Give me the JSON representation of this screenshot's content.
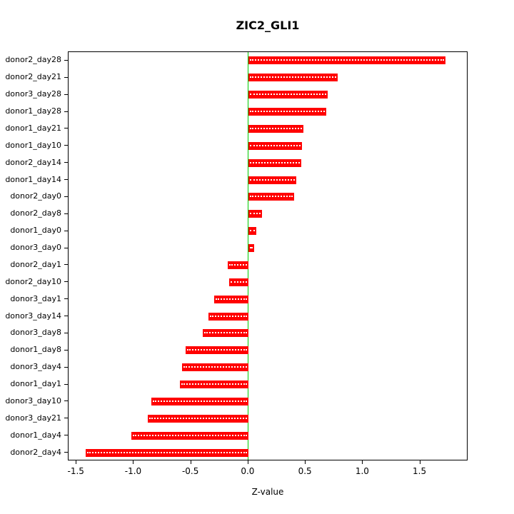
{
  "chart_data": {
    "type": "bar",
    "orientation": "horizontal",
    "title": "ZIC2_GLI1",
    "xlabel": "Z-value",
    "ylabel": "",
    "categories": [
      "donor2_day28",
      "donor2_day21",
      "donor3_day28",
      "donor1_day28",
      "donor1_day21",
      "donor1_day10",
      "donor2_day14",
      "donor1_day14",
      "donor2_day0",
      "donor2_day8",
      "donor1_day0",
      "donor3_day0",
      "donor2_day1",
      "donor2_day10",
      "donor3_day1",
      "donor3_day14",
      "donor3_day8",
      "donor1_day8",
      "donor3_day4",
      "donor1_day1",
      "donor3_day10",
      "donor3_day21",
      "donor1_day4",
      "donor2_day4"
    ],
    "values": [
      1.72,
      0.78,
      0.69,
      0.68,
      0.48,
      0.47,
      0.46,
      0.42,
      0.4,
      0.12,
      0.07,
      0.05,
      -0.18,
      -0.17,
      -0.3,
      -0.35,
      -0.4,
      -0.55,
      -0.58,
      -0.6,
      -0.85,
      -0.88,
      -1.02,
      -1.42
    ],
    "xlim": [
      -1.57,
      1.92
    ],
    "xticks": [
      -1.5,
      -1.0,
      -0.5,
      0.0,
      0.5,
      1.0,
      1.5
    ],
    "bar_color": "#ff0000",
    "zero_line_color": "#00cc00",
    "grid": false,
    "legend": null
  }
}
